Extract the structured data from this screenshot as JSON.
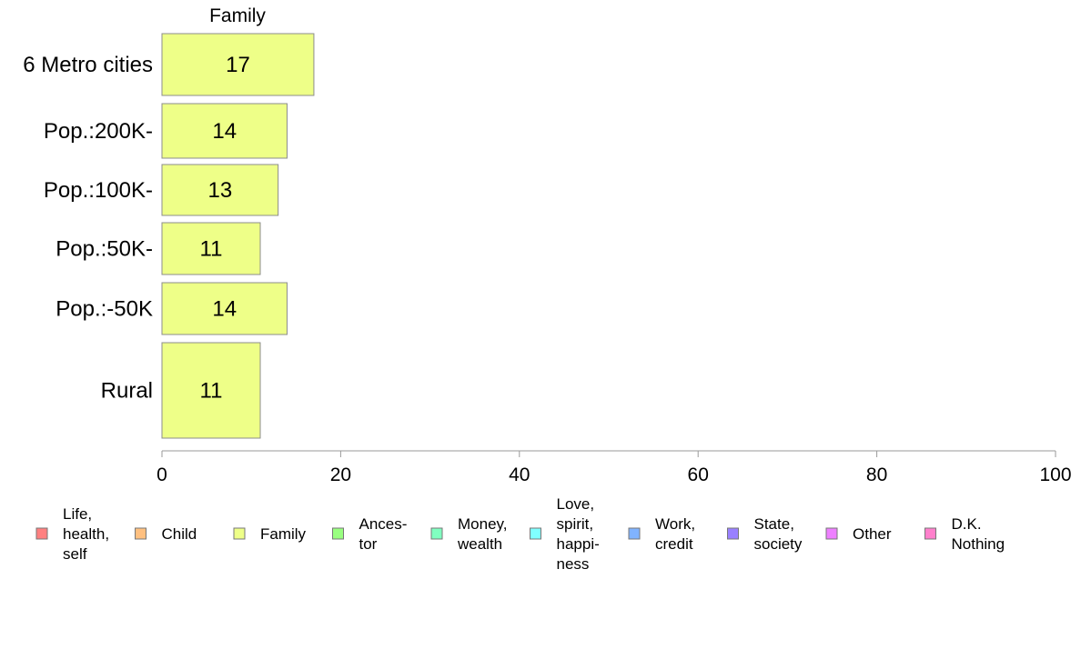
{
  "chart_data": {
    "type": "bar",
    "orientation": "horizontal",
    "title": "Family",
    "categories": [
      "6 Metro cities",
      "Pop.:200K-",
      "Pop.:100K-",
      "Pop.:50K-",
      "Pop.:-50K",
      "Rural"
    ],
    "series": [
      {
        "name": "Family",
        "values": [
          17,
          14,
          13,
          11,
          14,
          11
        ],
        "color": "#eeff88"
      }
    ],
    "xlim": [
      0,
      100
    ],
    "xticks": [
      0,
      20,
      40,
      60,
      80,
      100
    ],
    "grid": false,
    "legend_position": "bottom",
    "legend": [
      {
        "label": "Life,\nhealth,\nself",
        "color": "#ff8080"
      },
      {
        "label": "Child",
        "color": "#ffc080"
      },
      {
        "label": "Family",
        "color": "#eeff88"
      },
      {
        "label": "Ances-\ntor",
        "color": "#99ff80"
      },
      {
        "label": "Money,\nwealth",
        "color": "#80ffc0"
      },
      {
        "label": "Love,\nspirit,\nhappi-\nness",
        "color": "#80ffff"
      },
      {
        "label": "Work,\ncredit",
        "color": "#80b3ff"
      },
      {
        "label": "State,\nsociety",
        "color": "#9980ff"
      },
      {
        "label": "Other",
        "color": "#ee80ff"
      },
      {
        "label": "D.K.\nNothing",
        "color": "#ff80cc"
      }
    ]
  }
}
